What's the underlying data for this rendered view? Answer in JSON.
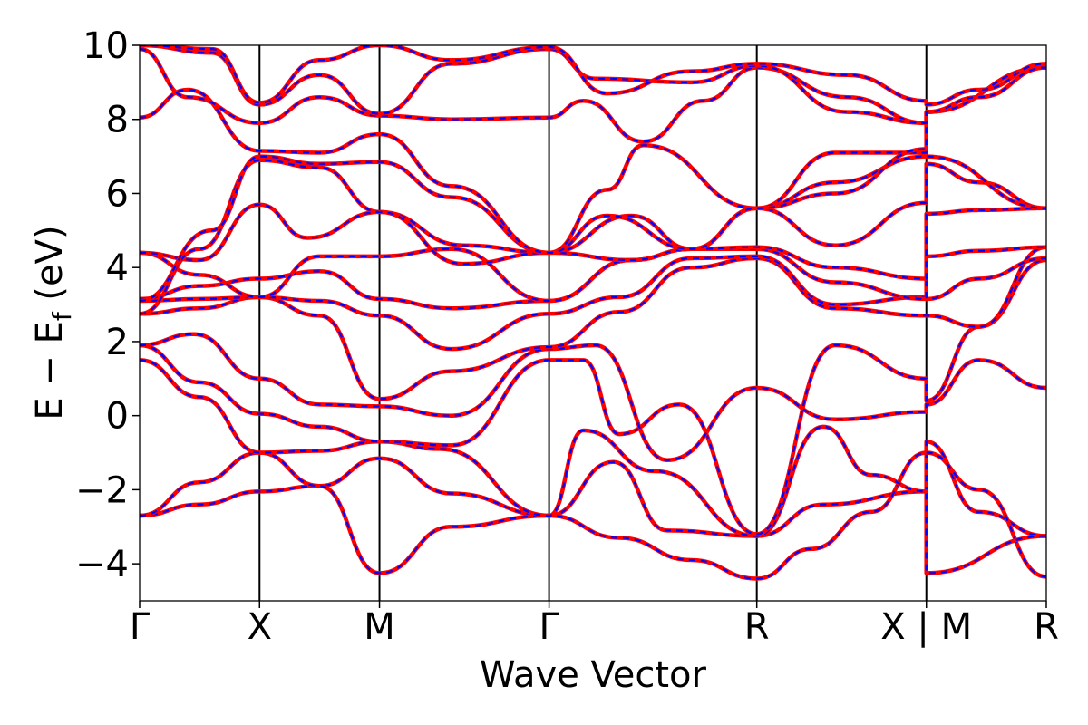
{
  "chart_data": {
    "type": "line",
    "xlabel": "Wave Vector",
    "ylabel_main": "E − E",
    "ylabel_sub": "f",
    "ylabel_unit": "(eV)",
    "ylim": [
      -5,
      10
    ],
    "y_ticks": [
      -4,
      -2,
      0,
      2,
      4,
      6,
      8,
      10
    ],
    "y_tick_labels": [
      "−4",
      "−2",
      "0",
      "2",
      "4",
      "6",
      "8",
      "10"
    ],
    "kpoint_positions": [
      0,
      1,
      2,
      3.414,
      5.146,
      6.56,
      7.56
    ],
    "kpoint_labels": [
      "Γ",
      "X",
      "M",
      "Γ",
      "R",
      "X | M",
      "R"
    ],
    "grid": false,
    "colors": {
      "series_red": "#ff0000",
      "series_blue": "#0000ff",
      "axis": "#000000"
    },
    "series": [
      {
        "points": [
          [
            0,
            -2.7
          ],
          [
            0.5,
            -2.4
          ],
          [
            1,
            -2.05
          ],
          [
            1.5,
            -1.9
          ],
          [
            2,
            -1.15
          ],
          [
            2.6,
            -2.1
          ],
          [
            3.414,
            -2.7
          ],
          [
            3.95,
            -1.25
          ],
          [
            4.4,
            -3.1
          ],
          [
            5.146,
            -3.25
          ],
          [
            5.7,
            -2.4
          ],
          [
            6.56,
            -2.05
          ],
          [
            6.56,
            -0.7
          ],
          [
            7.0,
            -2.6
          ],
          [
            7.56,
            -3.25
          ]
        ]
      },
      {
        "points": [
          [
            0,
            -2.7
          ],
          [
            0.5,
            -1.8
          ],
          [
            1,
            -1.0
          ],
          [
            1.5,
            -1.9
          ],
          [
            2,
            -4.25
          ],
          [
            2.6,
            -3.0
          ],
          [
            3.414,
            -2.7
          ],
          [
            4.0,
            -3.3
          ],
          [
            4.6,
            -3.9
          ],
          [
            5.146,
            -4.4
          ],
          [
            5.6,
            -3.6
          ],
          [
            6.1,
            -2.6
          ],
          [
            6.56,
            -1.0
          ],
          [
            7.0,
            -2.0
          ],
          [
            7.56,
            -4.35
          ]
        ]
      },
      {
        "points": [
          [
            0,
            1.5
          ],
          [
            0.5,
            0.5
          ],
          [
            1,
            -1.0
          ],
          [
            1.5,
            -0.95
          ],
          [
            2,
            -0.7
          ],
          [
            2.5,
            -0.9
          ],
          [
            3.414,
            -2.7
          ],
          [
            3.7,
            -0.4
          ],
          [
            4.3,
            -1.5
          ],
          [
            5.146,
            -3.25
          ],
          [
            5.7,
            -0.3
          ],
          [
            6.1,
            -1.6
          ],
          [
            6.56,
            -2.05
          ],
          [
            6.56,
            -4.25
          ],
          [
            7.56,
            -3.25
          ]
        ]
      },
      {
        "points": [
          [
            0,
            1.9
          ],
          [
            0.5,
            0.9
          ],
          [
            1,
            0.05
          ],
          [
            1.5,
            -0.3
          ],
          [
            2,
            -0.7
          ],
          [
            2.6,
            -0.8
          ],
          [
            3.414,
            1.5
          ],
          [
            3.7,
            1.5
          ],
          [
            4.0,
            -0.5
          ],
          [
            4.5,
            0.3
          ],
          [
            5.146,
            -3.2
          ],
          [
            5.8,
            1.9
          ],
          [
            6.56,
            1.0
          ],
          [
            6.56,
            0.4
          ],
          [
            7.0,
            2.4
          ],
          [
            7.56,
            4.2
          ]
        ]
      },
      {
        "points": [
          [
            0,
            1.9
          ],
          [
            0.45,
            2.2
          ],
          [
            1,
            1.0
          ],
          [
            1.5,
            0.3
          ],
          [
            2,
            0.25
          ],
          [
            2.6,
            0.0
          ],
          [
            3.414,
            1.8
          ],
          [
            3.8,
            1.9
          ],
          [
            4.4,
            -1.2
          ],
          [
            5.146,
            0.75
          ],
          [
            5.8,
            -0.1
          ],
          [
            6.56,
            0.1
          ],
          [
            6.56,
            0.3
          ],
          [
            7.0,
            1.5
          ],
          [
            7.56,
            0.75
          ]
        ]
      },
      {
        "points": [
          [
            0,
            2.75
          ],
          [
            0.5,
            2.9
          ],
          [
            1,
            3.2
          ],
          [
            1.5,
            2.7
          ],
          [
            2,
            0.45
          ],
          [
            2.6,
            1.2
          ],
          [
            3.414,
            1.85
          ],
          [
            4.0,
            2.8
          ],
          [
            4.6,
            4.0
          ],
          [
            5.146,
            4.25
          ],
          [
            5.8,
            2.9
          ],
          [
            6.56,
            2.7
          ],
          [
            6.56,
            2.7
          ],
          [
            7.0,
            2.4
          ],
          [
            7.56,
            4.55
          ]
        ]
      },
      {
        "points": [
          [
            0,
            3.1
          ],
          [
            0.5,
            3.15
          ],
          [
            1,
            3.2
          ],
          [
            1.5,
            3.1
          ],
          [
            2,
            2.7
          ],
          [
            2.6,
            1.8
          ],
          [
            3.414,
            2.75
          ],
          [
            4.0,
            3.2
          ],
          [
            4.6,
            4.25
          ],
          [
            5.146,
            4.3
          ],
          [
            5.8,
            3.0
          ],
          [
            6.56,
            3.2
          ],
          [
            6.56,
            3.15
          ],
          [
            7.0,
            3.7
          ],
          [
            7.56,
            4.25
          ]
        ]
      },
      {
        "points": [
          [
            0,
            3.15
          ],
          [
            0.5,
            3.5
          ],
          [
            1,
            3.7
          ],
          [
            1.5,
            3.9
          ],
          [
            2,
            3.15
          ],
          [
            2.6,
            2.9
          ],
          [
            3.414,
            3.1
          ],
          [
            4.1,
            4.2
          ],
          [
            4.6,
            4.5
          ],
          [
            5.146,
            4.5
          ],
          [
            5.8,
            3.6
          ],
          [
            6.56,
            3.15
          ],
          [
            6.56,
            4.3
          ],
          [
            7.0,
            4.45
          ],
          [
            7.56,
            4.55
          ]
        ]
      },
      {
        "points": [
          [
            0,
            4.4
          ],
          [
            0.5,
            3.8
          ],
          [
            1,
            3.2
          ],
          [
            1.5,
            4.3
          ],
          [
            2,
            4.3
          ],
          [
            2.6,
            4.5
          ],
          [
            3.414,
            3.1
          ],
          [
            4.1,
            4.2
          ],
          [
            4.6,
            4.5
          ],
          [
            5.146,
            4.55
          ],
          [
            5.8,
            4.0
          ],
          [
            6.56,
            3.7
          ],
          [
            6.56,
            5.45
          ],
          [
            7.0,
            5.55
          ],
          [
            7.56,
            5.6
          ]
        ]
      },
      {
        "points": [
          [
            0,
            4.4
          ],
          [
            0.5,
            4.2
          ],
          [
            1,
            5.7
          ],
          [
            1.4,
            4.8
          ],
          [
            2,
            5.5
          ],
          [
            2.7,
            4.6
          ],
          [
            3.414,
            4.4
          ],
          [
            4.1,
            5.4
          ],
          [
            4.6,
            4.5
          ],
          [
            5.146,
            5.6
          ],
          [
            5.8,
            4.6
          ],
          [
            6.56,
            5.75
          ],
          [
            6.56,
            6.8
          ],
          [
            7.0,
            6.3
          ],
          [
            7.56,
            5.6
          ]
        ]
      },
      {
        "points": [
          [
            0,
            2.75
          ],
          [
            0.5,
            4.5
          ],
          [
            1,
            6.9
          ],
          [
            1.5,
            6.7
          ],
          [
            2,
            5.5
          ],
          [
            2.7,
            4.1
          ],
          [
            3.414,
            4.4
          ],
          [
            3.9,
            6.1
          ],
          [
            4.2,
            7.3
          ],
          [
            5.146,
            5.6
          ],
          [
            5.8,
            6.3
          ],
          [
            6.56,
            7.0
          ],
          [
            6.56,
            7.0
          ],
          [
            7.56,
            5.6
          ]
        ]
      },
      {
        "points": [
          [
            0,
            3.1
          ],
          [
            0.6,
            5.0
          ],
          [
            1,
            7.0
          ],
          [
            1.5,
            6.8
          ],
          [
            2,
            6.85
          ],
          [
            2.6,
            5.9
          ],
          [
            3.414,
            4.4
          ],
          [
            4.1,
            4.2
          ],
          [
            4.6,
            4.5
          ],
          [
            5.146,
            5.6
          ],
          [
            5.8,
            7.1
          ],
          [
            6.56,
            7.1
          ],
          [
            6.56,
            8.2
          ],
          [
            7.56,
            9.4
          ]
        ]
      },
      {
        "points": [
          [
            0,
            8.05
          ],
          [
            0.4,
            8.8
          ],
          [
            1,
            7.15
          ],
          [
            1.5,
            7.1
          ],
          [
            2,
            7.6
          ],
          [
            2.6,
            6.2
          ],
          [
            3.414,
            4.4
          ],
          [
            3.9,
            5.4
          ],
          [
            4.6,
            4.5
          ],
          [
            5.146,
            5.6
          ],
          [
            5.8,
            6.0
          ],
          [
            6.56,
            7.2
          ],
          [
            6.56,
            8.2
          ],
          [
            7.56,
            9.4
          ]
        ]
      },
      {
        "points": [
          [
            0,
            9.9
          ],
          [
            0.4,
            8.6
          ],
          [
            1,
            7.9
          ],
          [
            1.5,
            8.6
          ],
          [
            2,
            8.1
          ],
          [
            2.6,
            8.0
          ],
          [
            3.414,
            8.05
          ],
          [
            3.7,
            8.5
          ],
          [
            4.2,
            7.4
          ],
          [
            4.7,
            8.5
          ],
          [
            5.146,
            9.4
          ],
          [
            5.9,
            8.6
          ],
          [
            6.56,
            7.9
          ],
          [
            6.56,
            8.2
          ],
          [
            7.0,
            8.6
          ],
          [
            7.56,
            9.4
          ]
        ]
      },
      {
        "points": [
          [
            0,
            10.0
          ],
          [
            0.6,
            9.8
          ],
          [
            1,
            8.4
          ],
          [
            1.5,
            9.2
          ],
          [
            2,
            8.15
          ],
          [
            2.6,
            9.5
          ],
          [
            3.414,
            9.9
          ],
          [
            3.8,
            9.1
          ],
          [
            4.6,
            9.0
          ],
          [
            5.146,
            9.45
          ],
          [
            5.9,
            8.2
          ],
          [
            6.56,
            7.9
          ],
          [
            6.56,
            8.2
          ],
          [
            7.0,
            8.6
          ],
          [
            7.56,
            9.4
          ]
        ]
      },
      {
        "points": [
          [
            0,
            10.0
          ],
          [
            0.6,
            9.9
          ],
          [
            1,
            8.45
          ],
          [
            1.5,
            9.6
          ],
          [
            2,
            10.0
          ],
          [
            2.6,
            9.6
          ],
          [
            3.414,
            9.95
          ],
          [
            3.9,
            8.7
          ],
          [
            4.6,
            9.3
          ],
          [
            5.146,
            9.5
          ],
          [
            5.9,
            9.2
          ],
          [
            6.56,
            8.5
          ],
          [
            6.56,
            8.4
          ],
          [
            7.0,
            8.8
          ],
          [
            7.56,
            9.5
          ]
        ]
      }
    ]
  }
}
